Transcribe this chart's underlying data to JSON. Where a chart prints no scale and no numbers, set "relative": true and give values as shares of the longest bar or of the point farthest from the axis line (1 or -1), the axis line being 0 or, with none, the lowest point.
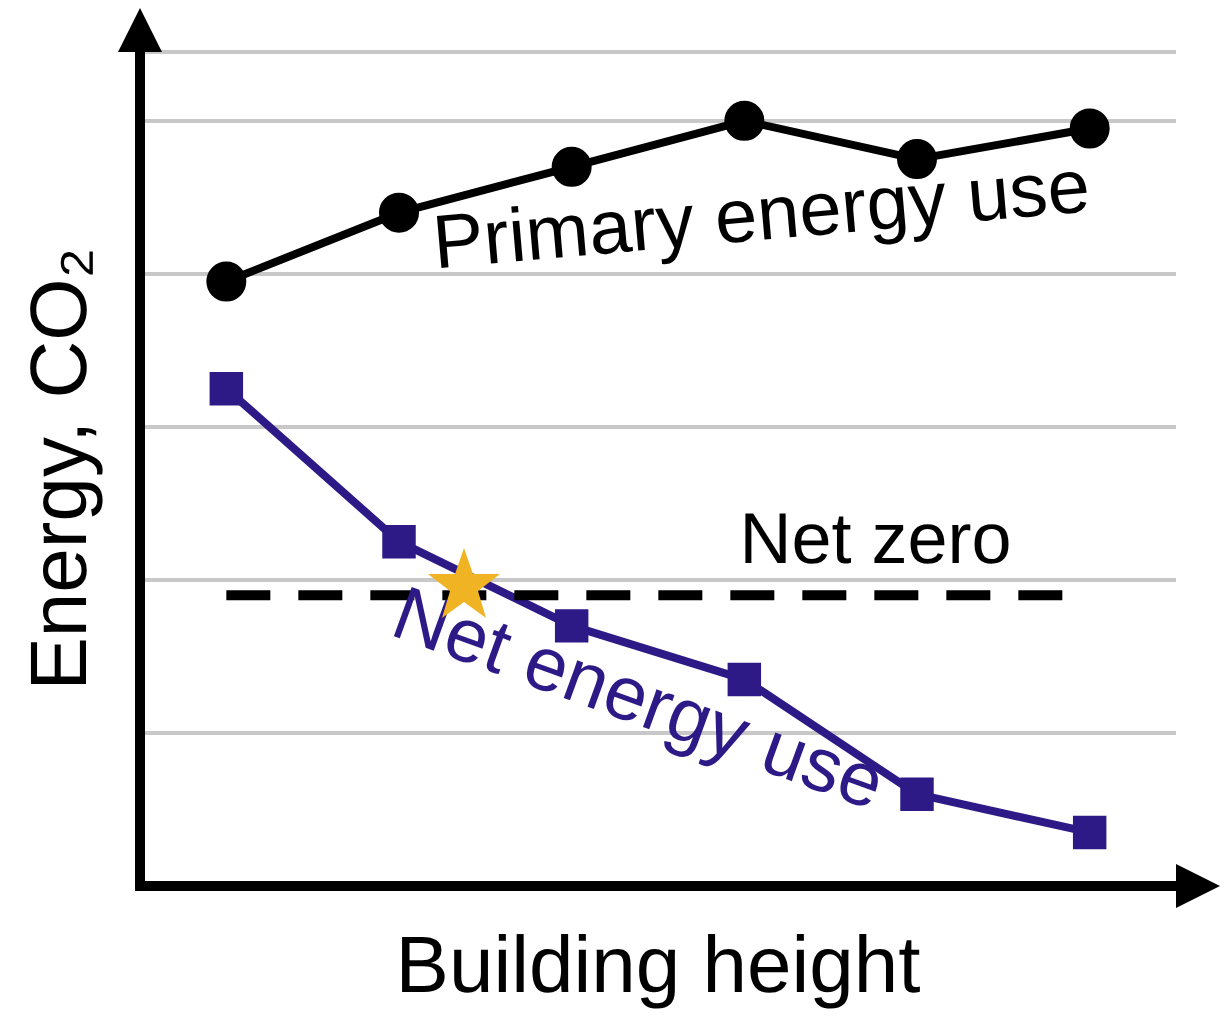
{
  "chart_data": {
    "type": "line",
    "relative": true,
    "xlabel": "Building height",
    "ylabel": "Energy, CO₂",
    "categories": [
      null,
      null,
      null,
      null,
      null,
      null
    ],
    "grid": "y",
    "legend": false,
    "series": [
      {
        "name": "Primary energy use",
        "color": "#000000",
        "marker": "circle",
        "values": [
          0.79,
          0.88,
          0.94,
          1.0,
          0.95,
          0.99
        ]
      },
      {
        "name": "Net energy use",
        "color": "#2e1a87",
        "marker": "square",
        "values": [
          0.65,
          0.45,
          0.34,
          0.27,
          0.12,
          0.07
        ]
      }
    ],
    "ref_lines": [
      {
        "axis": "y",
        "value": 0.38,
        "label": "Net zero",
        "color": "#000000",
        "line_style": "dashed"
      }
    ]
  }
}
